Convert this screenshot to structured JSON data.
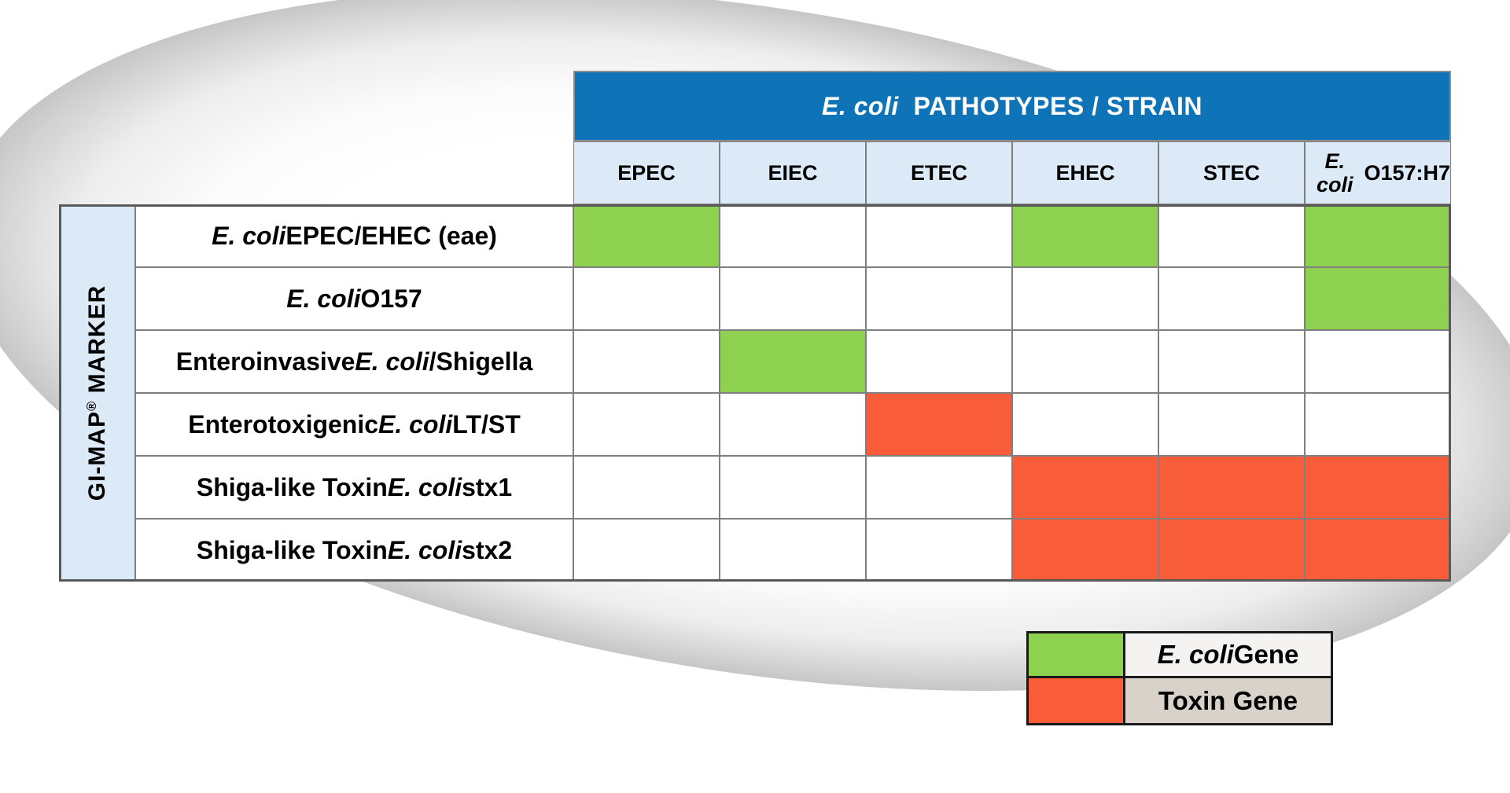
{
  "colors": {
    "header_blue": "#0f74b7",
    "light_blue": "#dce9f7",
    "green": "#8ed04f",
    "orange": "#f85c39",
    "grid_line": "#7f7f7f",
    "outer_border": "#595959",
    "legend_border": "#1a1a1a",
    "legend_bg_1": "#f4f3f1",
    "legend_bg_2": "#d8d2ca",
    "text_black": "#000000",
    "title_text": "#ffffff"
  },
  "table": {
    "title_parts": [
      {
        "t": "E. coli",
        "i": 1
      },
      {
        "t": "  PATHOTYPES / STRAIN"
      }
    ],
    "columns": [
      {
        "parts": [
          {
            "t": "EPEC"
          }
        ]
      },
      {
        "parts": [
          {
            "t": "EIEC"
          }
        ]
      },
      {
        "parts": [
          {
            "t": "ETEC"
          }
        ]
      },
      {
        "parts": [
          {
            "t": "EHEC"
          }
        ]
      },
      {
        "parts": [
          {
            "t": "STEC"
          }
        ]
      },
      {
        "parts": [
          {
            "t": "E. coli",
            "i": 1,
            "br": 1
          },
          {
            "t": "O157:H7"
          }
        ]
      }
    ],
    "sidebar_parts": [
      {
        "t": "GI-MAP"
      },
      {
        "t": "®",
        "sup": 1
      },
      {
        "t": " MARKER"
      }
    ],
    "rows": [
      {
        "parts": [
          {
            "t": "E. coli",
            "i": 1
          },
          {
            "t": " EPEC/EHEC (eae)"
          }
        ]
      },
      {
        "parts": [
          {
            "t": "E. coli",
            "i": 1
          },
          {
            "t": " O157"
          }
        ]
      },
      {
        "parts": [
          {
            "t": "Enteroinvasive "
          },
          {
            "t": "E. coli",
            "i": 1
          },
          {
            "t": "/Shigella"
          }
        ]
      },
      {
        "parts": [
          {
            "t": "Enterotoxigenic "
          },
          {
            "t": "E. coli",
            "i": 1
          },
          {
            "t": " LT/ST"
          }
        ]
      },
      {
        "parts": [
          {
            "t": "Shiga-like Toxin "
          },
          {
            "t": "E. coli",
            "i": 1
          },
          {
            "t": " stx1"
          }
        ]
      },
      {
        "parts": [
          {
            "t": "Shiga-like Toxin "
          },
          {
            "t": "E. coli",
            "i": 1
          },
          {
            "t": " stx2"
          }
        ]
      }
    ],
    "cells": [
      [
        "green",
        "",
        "",
        "green",
        "",
        "green"
      ],
      [
        "",
        "",
        "",
        "",
        "",
        "green"
      ],
      [
        "",
        "green",
        "",
        "",
        "",
        ""
      ],
      [
        "",
        "",
        "orange",
        "",
        "",
        ""
      ],
      [
        "",
        "",
        "",
        "orange",
        "orange",
        "orange"
      ],
      [
        "",
        "",
        "",
        "orange",
        "orange",
        "orange"
      ]
    ]
  },
  "legend": {
    "items": [
      {
        "swatch": "green",
        "parts": [
          {
            "t": "E. coli",
            "i": 1
          },
          {
            "t": " Gene"
          }
        ]
      },
      {
        "swatch": "orange",
        "parts": [
          {
            "t": "Toxin Gene"
          }
        ]
      }
    ]
  }
}
